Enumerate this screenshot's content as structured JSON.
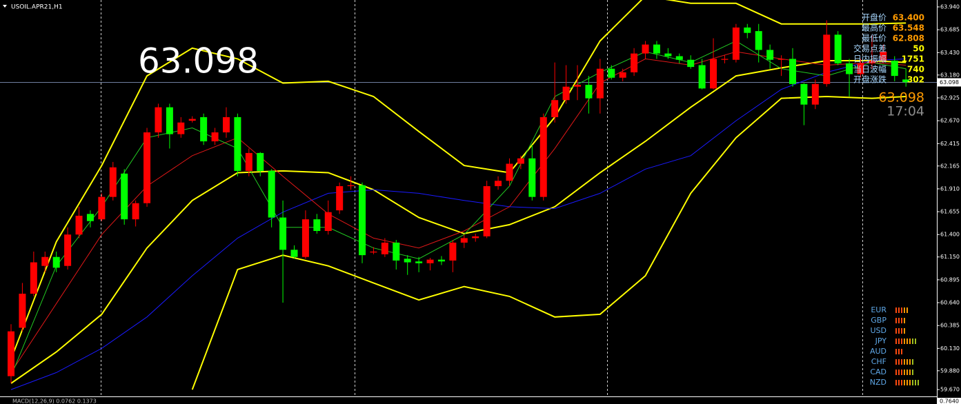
{
  "chart_data": {
    "type": "candlestick",
    "title": "USOIL.APR21,H1",
    "open": [
      59.82,
      60.36,
      60.74,
      61.05,
      61.15,
      61.05,
      61.4,
      61.63,
      61.57,
      61.82,
      62.08,
      61.57,
      61.75,
      62.54,
      62.82,
      62.52,
      62.67,
      62.71,
      62.44,
      62.54,
      62.71,
      62.11,
      62.31,
      62.11,
      61.59,
      61.23,
      61.15,
      61.57,
      61.44,
      61.67,
      61.94,
      61.95,
      61.2,
      61.18,
      61.31,
      61.13,
      61.1,
      61.08,
      61.12,
      61.11,
      61.31,
      61.36,
      61.38,
      61.94,
      62.0,
      62.19,
      62.25,
      61.82,
      62.71,
      62.9,
      63.05,
      63.07,
      62.92,
      63.25,
      63.15,
      63.21,
      63.42,
      63.52,
      63.42,
      63.39,
      63.35,
      63.29,
      63.03,
      63.35,
      63.35,
      63.71,
      63.67,
      63.46,
      63.35,
      63.36,
      63.08,
      62.85,
      63.08,
      63.63,
      63.31,
      63.19,
      63.31,
      63.34,
      63.34,
      63.13
    ],
    "high": [
      60.4,
      60.86,
      61.21,
      61.21,
      61.21,
      61.48,
      61.71,
      61.67,
      61.86,
      62.21,
      62.13,
      61.78,
      62.59,
      62.86,
      62.86,
      62.71,
      62.72,
      62.75,
      62.59,
      62.82,
      62.75,
      62.36,
      62.32,
      62.13,
      61.78,
      61.28,
      61.67,
      61.63,
      61.78,
      61.98,
      62.05,
      61.98,
      61.26,
      61.36,
      61.34,
      61.17,
      61.15,
      61.14,
      61.16,
      61.34,
      61.4,
      61.41,
      62.0,
      62.05,
      62.25,
      62.28,
      62.4,
      62.75,
      63.32,
      63.29,
      63.29,
      63.17,
      63.36,
      63.29,
      63.25,
      63.48,
      63.56,
      63.56,
      63.48,
      63.42,
      63.4,
      63.36,
      63.59,
      63.4,
      63.75,
      63.75,
      63.75,
      63.52,
      63.4,
      63.48,
      63.09,
      63.13,
      63.79,
      63.67,
      63.36,
      63.36,
      63.63,
      63.52,
      63.39,
      63.25
    ],
    "low": [
      59.74,
      60.32,
      60.71,
      60.98,
      60.98,
      61.01,
      61.36,
      61.48,
      61.55,
      61.78,
      61.51,
      61.49,
      61.71,
      62.48,
      62.36,
      62.48,
      62.65,
      62.4,
      62.4,
      62.48,
      62.05,
      62.05,
      62.05,
      61.48,
      60.64,
      61.13,
      61.13,
      61.41,
      61.4,
      61.63,
      61.9,
      61.08,
      61.18,
      61.15,
      61.01,
      60.95,
      60.98,
      61.0,
      61.06,
      60.98,
      61.25,
      61.32,
      61.36,
      61.9,
      61.94,
      62.13,
      61.78,
      61.78,
      62.65,
      62.86,
      62.9,
      62.75,
      62.75,
      63.13,
      63.11,
      63.17,
      63.36,
      63.36,
      63.36,
      63.31,
      63.25,
      63.02,
      63.02,
      63.31,
      63.32,
      63.59,
      63.32,
      63.25,
      63.17,
      63.05,
      62.62,
      62.8,
      63.05,
      63.29,
      62.94,
      63.15,
      63.25,
      63.31,
      63.11,
      63.05
    ],
    "close": [
      60.32,
      60.74,
      61.09,
      61.15,
      61.03,
      61.4,
      61.61,
      61.55,
      61.82,
      62.15,
      61.57,
      61.75,
      62.54,
      62.82,
      62.52,
      62.65,
      62.69,
      62.44,
      62.54,
      62.71,
      62.11,
      62.31,
      62.11,
      61.59,
      61.23,
      61.15,
      61.57,
      61.44,
      61.65,
      61.94,
      61.95,
      61.17,
      61.21,
      61.31,
      61.11,
      61.09,
      61.08,
      61.12,
      61.1,
      61.31,
      61.36,
      61.38,
      61.94,
      62.0,
      62.19,
      62.25,
      61.82,
      62.71,
      62.9,
      63.05,
      63.07,
      62.92,
      63.25,
      63.15,
      63.21,
      63.42,
      63.52,
      63.42,
      63.39,
      63.35,
      63.27,
      63.03,
      63.36,
      63.36,
      63.71,
      63.65,
      63.46,
      63.35,
      63.36,
      63.08,
      62.85,
      63.08,
      63.63,
      63.31,
      63.19,
      63.31,
      63.34,
      63.44,
      63.17,
      63.1
    ],
    "up_color": "#ff0000",
    "down_color": "#00ff00",
    "overlay_x": [
      0,
      4,
      8,
      12,
      16,
      20,
      24,
      28,
      32,
      36,
      40,
      44,
      48,
      52,
      56,
      60,
      64,
      68,
      72,
      76,
      79
    ],
    "overlays": [
      {
        "color": "#ffff00",
        "values": [
          60.01,
          61.32,
          62.17,
          63.17,
          63.48,
          63.36,
          63.09,
          63.11,
          62.94,
          62.55,
          62.17,
          62.09,
          62.71,
          63.56,
          64.06,
          63.98,
          63.98,
          63.75,
          63.75,
          63.75,
          63.76
        ]
      },
      {
        "color": "#ffff00",
        "values": [
          59.74,
          60.09,
          60.51,
          61.25,
          61.78,
          62.09,
          62.11,
          62.09,
          61.9,
          61.59,
          61.41,
          61.51,
          61.71,
          62.09,
          62.44,
          62.82,
          63.17,
          63.26,
          63.34,
          63.34,
          63.32
        ]
      },
      {
        "color": "#ffff00",
        "values": [
          null,
          null,
          null,
          null,
          59.67,
          61.01,
          61.17,
          61.05,
          60.86,
          60.67,
          60.82,
          60.71,
          60.48,
          60.51,
          60.94,
          61.86,
          62.48,
          62.92,
          62.94,
          62.92,
          62.94
        ]
      },
      {
        "color": "#1a1aff",
        "values": [
          59.67,
          59.86,
          60.13,
          60.48,
          60.94,
          61.36,
          61.65,
          61.86,
          61.9,
          61.86,
          61.78,
          61.71,
          61.69,
          61.86,
          62.13,
          62.28,
          62.67,
          63.02,
          63.21,
          63.34,
          63.36
        ]
      },
      {
        "color": "#e01818",
        "values": [
          59.86,
          60.63,
          61.4,
          61.94,
          62.28,
          62.48,
          62.05,
          61.63,
          61.36,
          61.25,
          61.44,
          61.71,
          62.36,
          63.09,
          63.36,
          63.29,
          63.44,
          63.36,
          63.29,
          63.32,
          63.29
        ]
      },
      {
        "color": "#22cc22",
        "values": [
          59.82,
          61.05,
          61.71,
          62.48,
          62.59,
          62.36,
          61.48,
          61.48,
          61.25,
          61.13,
          61.4,
          61.94,
          62.94,
          63.21,
          63.44,
          63.32,
          63.56,
          63.25,
          63.17,
          63.32,
          63.25
        ]
      }
    ],
    "ylim": [
      59.594,
      64.017
    ],
    "yticks": [
      {
        "value": 63.94,
        "label": "63.940"
      },
      {
        "value": 63.685,
        "label": "63.685"
      },
      {
        "value": 63.43,
        "label": "63.430"
      },
      {
        "value": 63.18,
        "label": "63.180"
      },
      {
        "value": 62.925,
        "label": "62.925"
      },
      {
        "value": 62.67,
        "label": "62.670"
      },
      {
        "value": 62.415,
        "label": "62.415"
      },
      {
        "value": 62.165,
        "label": "62.165"
      },
      {
        "value": 61.91,
        "label": "61.910"
      },
      {
        "value": 61.655,
        "label": "61.655"
      },
      {
        "value": 61.4,
        "label": "61.400"
      },
      {
        "value": 61.15,
        "label": "61.150"
      },
      {
        "value": 60.895,
        "label": "60.895"
      },
      {
        "value": 60.64,
        "label": "60.640"
      },
      {
        "value": 60.385,
        "label": "60.385"
      },
      {
        "value": 60.13,
        "label": "60.130"
      },
      {
        "value": 59.88,
        "label": "59.880"
      },
      {
        "value": 59.67,
        "label": "59.670"
      }
    ],
    "current_price": 63.098,
    "clock": "17:04"
  },
  "info_panel": {
    "rows": [
      {
        "label": "开盘价",
        "value": "63.400",
        "color": "#ff9a00"
      },
      {
        "label": "最高价",
        "value": "63.548",
        "color": "#ff9a00"
      },
      {
        "label": "最低价",
        "value": "62.808",
        "color": "#ff9a00"
      },
      {
        "label": "交易点差",
        "value": "50",
        "color": "#ffff00"
      },
      {
        "label": "日内振幅",
        "value": "1751",
        "color": "#ffff00"
      },
      {
        "label": "当日波幅",
        "value": "740",
        "color": "#ffff00"
      },
      {
        "label": "开盘涨跌",
        "value": "302",
        "color": "#ffff00"
      }
    ]
  },
  "currency_strength": {
    "rows": [
      {
        "label": "EUR",
        "value": 5
      },
      {
        "label": "GBP",
        "value": 4
      },
      {
        "label": "USD",
        "value": 4
      },
      {
        "label": "JPY",
        "value": 8
      },
      {
        "label": "AUD",
        "value": 3
      },
      {
        "label": "CHF",
        "value": 7
      },
      {
        "label": "CAD",
        "value": 7
      },
      {
        "label": "NZD",
        "value": 9
      }
    ]
  },
  "macd": {
    "label": "MACD(12,26,9) 0.0762 0.1373",
    "axis_label": "0.7640"
  }
}
